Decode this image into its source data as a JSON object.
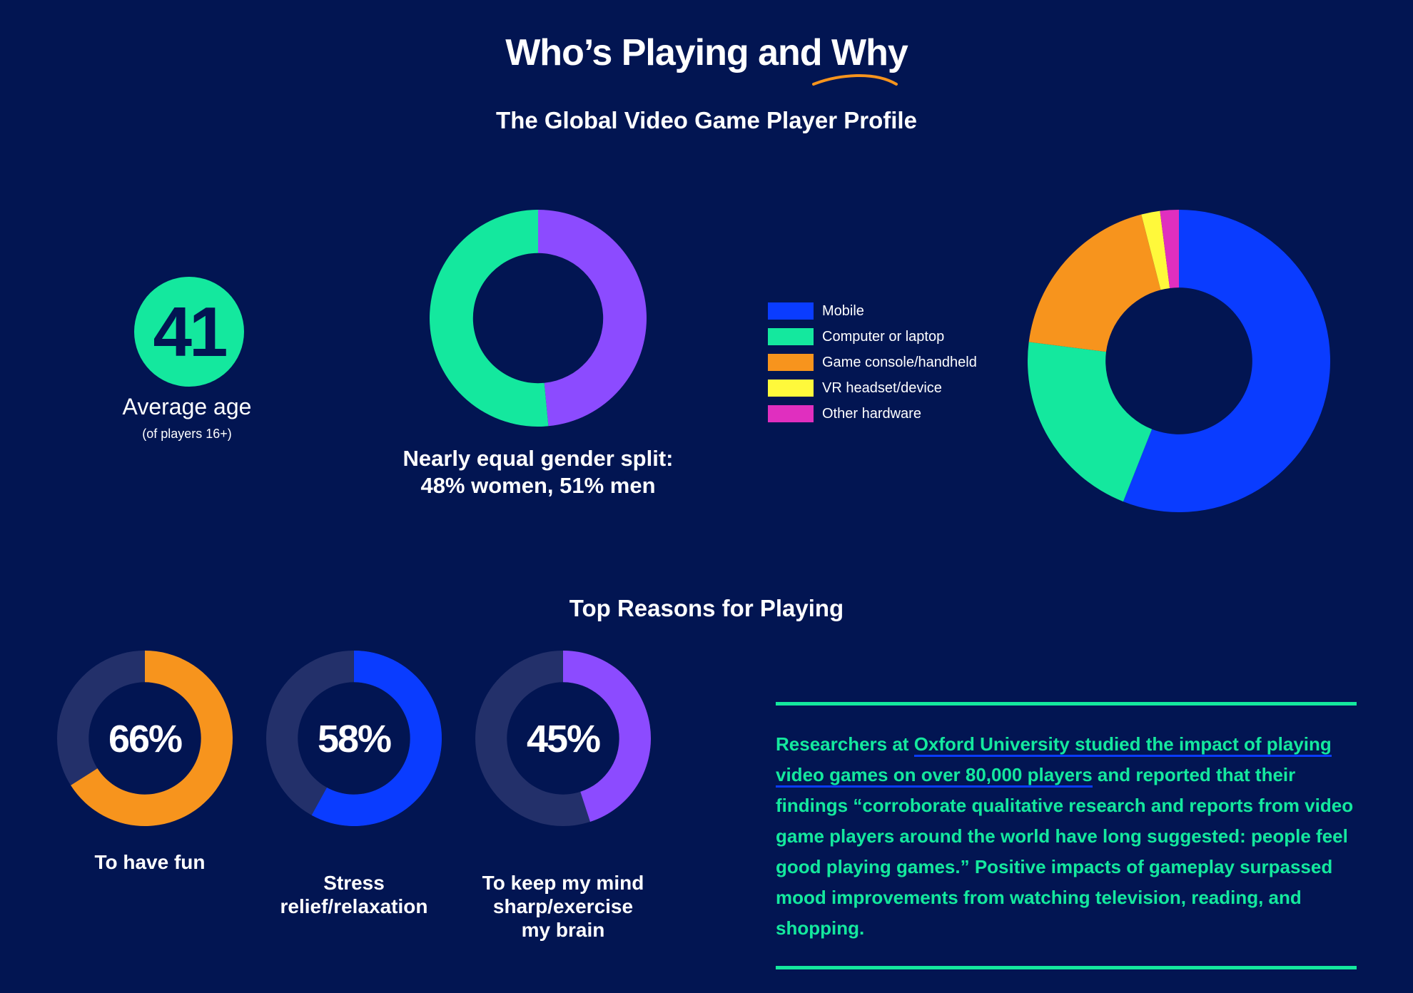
{
  "header": {
    "title": "Who’s Playing and Why",
    "subtitle": "The Global Video Game Player Profile"
  },
  "age": {
    "value": "41",
    "label": "Average age",
    "note": "(of players 16+)"
  },
  "gender": {
    "caption_line1": "Nearly equal gender split:",
    "caption_line2": "48% women, 51% men"
  },
  "reasons": {
    "title": "Top Reasons for Playing",
    "items": [
      {
        "pct": "66%",
        "value": 66,
        "label_lines": [
          "To have fun"
        ],
        "color": "#f7941d"
      },
      {
        "pct": "58%",
        "value": 58,
        "label_lines": [
          "Stress",
          "relief/relaxation"
        ],
        "color": "#0a3cff"
      },
      {
        "pct": "45%",
        "value": 45,
        "label_lines": [
          "To keep my mind",
          "sharp/exercise",
          "my brain"
        ],
        "color": "#8c4bff"
      }
    ]
  },
  "quote": {
    "pre": "Researchers at ",
    "link": "Oxford University studied the impact of playing video games on over 80,000 players",
    "post": " and reported that their findings “corroborate qualitative research and reports from video game players around the world have long suggested: people feel good playing games.” Positive impacts of gameplay surpassed mood improvements from watching television, reading, and shopping."
  },
  "colors": {
    "background": "#021552",
    "green": "#14e89e",
    "purple": "#8c4bff",
    "blue": "#0a3cff",
    "orange": "#f7941d",
    "yellow": "#fff93b",
    "magenta": "#e02fbf",
    "track": "#23306a"
  },
  "chart_data": [
    {
      "type": "pie",
      "categories": [
        "Women",
        "Men"
      ],
      "values": [
        48,
        51
      ],
      "colors": [
        "#8c4bff",
        "#14e89e"
      ]
    },
    {
      "type": "pie",
      "categories": [
        "Mobile",
        "Computer or laptop",
        "Game console/handheld",
        "VR headset/device",
        "Other hardware"
      ],
      "values": [
        56,
        21,
        19,
        2,
        2
      ],
      "colors": [
        "#0a3cff",
        "#14e89e",
        "#f7941d",
        "#fff93b",
        "#e02fbf"
      ],
      "legend": "left"
    },
    {
      "type": "pie",
      "categories": [
        "To have fun"
      ],
      "values": [
        66
      ],
      "colors": [
        "#f7941d"
      ]
    },
    {
      "type": "pie",
      "categories": [
        "Stress relief/relaxation"
      ],
      "values": [
        58
      ],
      "colors": [
        "#0a3cff"
      ]
    },
    {
      "type": "pie",
      "categories": [
        "To keep my mind sharp/exercise my brain"
      ],
      "values": [
        45
      ],
      "colors": [
        "#8c4bff"
      ]
    }
  ]
}
